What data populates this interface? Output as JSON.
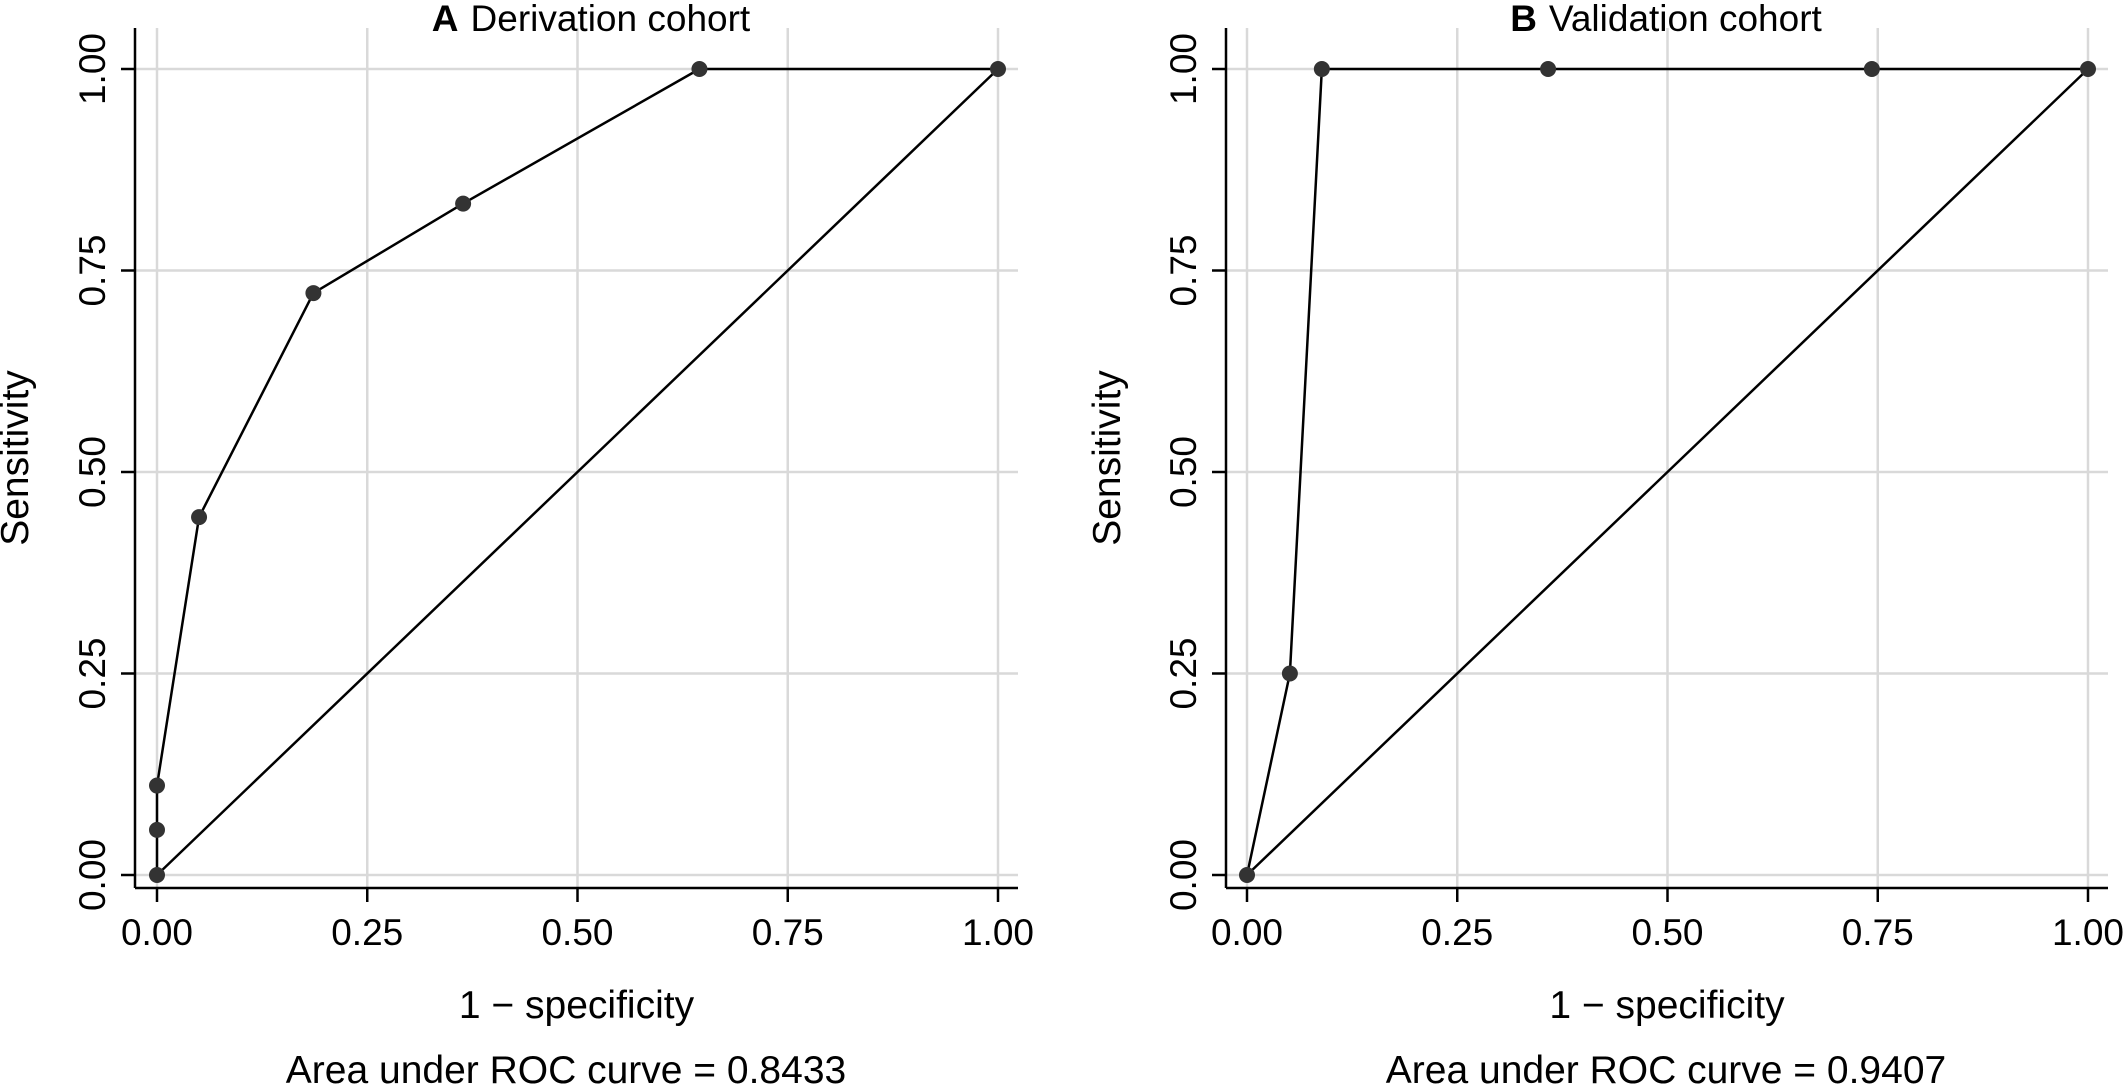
{
  "chart_data": [
    {
      "type": "line",
      "panel_letter": "A",
      "title": "Derivation cohort",
      "xlabel": "1 − specificity",
      "ylabel": "Sensitivity",
      "xlim": [
        0,
        1
      ],
      "ylim": [
        0,
        1
      ],
      "x_ticks": [
        "0.00",
        "0.25",
        "0.50",
        "0.75",
        "1.00"
      ],
      "y_ticks": [
        "0.00",
        "0.25",
        "0.50",
        "0.75",
        "1.00"
      ],
      "grid": true,
      "reference_line": {
        "x": [
          0,
          1
        ],
        "y": [
          0,
          1
        ]
      },
      "series": [
        {
          "x": [
            0.0,
            0.0,
            0.0,
            0.05,
            0.186,
            0.364,
            0.645,
            1.0
          ],
          "y": [
            0.0,
            0.056,
            0.111,
            0.444,
            0.722,
            0.833,
            1.0,
            1.0
          ]
        }
      ],
      "caption": "Area under ROC curve = 0.8433"
    },
    {
      "type": "line",
      "panel_letter": "B",
      "title": "Validation cohort",
      "xlabel": "1 − specificity",
      "ylabel": "Sensitivity",
      "xlim": [
        0,
        1
      ],
      "ylim": [
        0,
        1
      ],
      "x_ticks": [
        "0.00",
        "0.25",
        "0.50",
        "0.75",
        "1.00"
      ],
      "y_ticks": [
        "0.00",
        "0.25",
        "0.50",
        "0.75",
        "1.00"
      ],
      "grid": true,
      "reference_line": {
        "x": [
          0,
          1
        ],
        "y": [
          0,
          1
        ]
      },
      "series": [
        {
          "x": [
            0.0,
            0.051,
            0.089,
            0.358,
            0.743,
            1.0
          ],
          "y": [
            0.0,
            0.25,
            1.0,
            1.0,
            1.0,
            1.0
          ]
        }
      ],
      "caption": "Area under ROC curve = 0.9407"
    }
  ],
  "colors": {
    "line": "#000000",
    "marker": "#333333",
    "grid": "#d9d9d9",
    "axis": "#000000",
    "background": "#ffffff"
  }
}
